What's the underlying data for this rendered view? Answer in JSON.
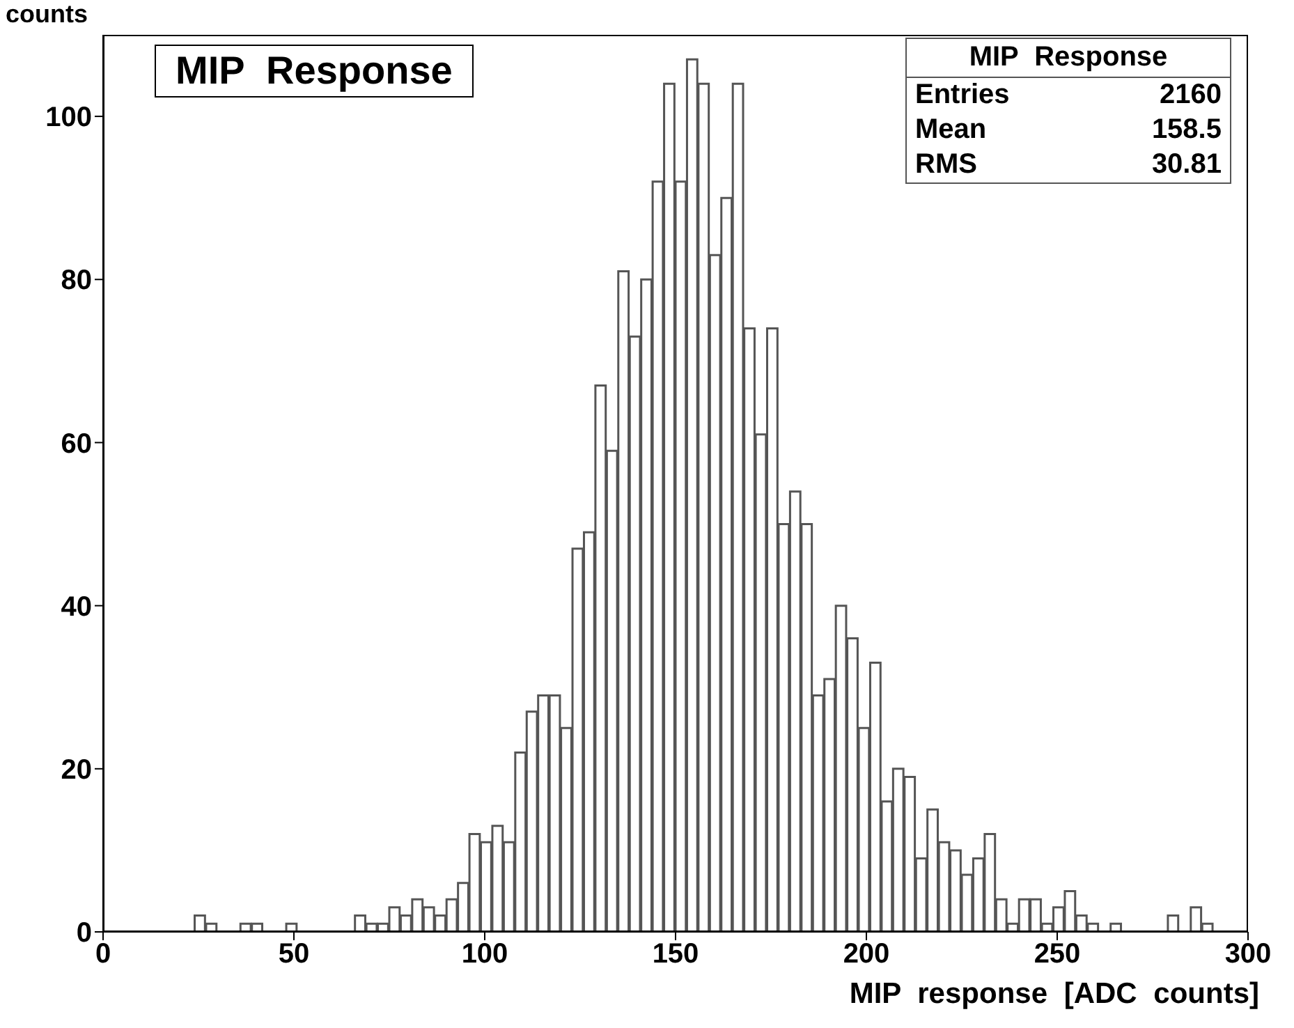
{
  "chart_data": {
    "type": "histogram",
    "title": "MIP Response",
    "xlabel": "MIP response [ADC counts]",
    "ylabel": "counts",
    "annotations": [
      "MIP Response",
      "Entries 2160",
      "Mean 158.5",
      "RMS 30.81"
    ],
    "bins": [
      0,
      3,
      6,
      9,
      12,
      15,
      18,
      21,
      24,
      27,
      30,
      33,
      36,
      39,
      42,
      45,
      48,
      51,
      54,
      57,
      60,
      63,
      66,
      69,
      72,
      75,
      78,
      81,
      84,
      87,
      90,
      93,
      96,
      99,
      102,
      105,
      108,
      111,
      114,
      117,
      120,
      123,
      126,
      129,
      132,
      135,
      138,
      141,
      144,
      147,
      150,
      153,
      156,
      159,
      162,
      165,
      168,
      171,
      174,
      177,
      180,
      183,
      186,
      189,
      192,
      195,
      198,
      201,
      204,
      207,
      210,
      213,
      216,
      219,
      222,
      225,
      228,
      231,
      234,
      237,
      240,
      243,
      246,
      249,
      252,
      255,
      258,
      261,
      264,
      267,
      270,
      273,
      276,
      279,
      282,
      285,
      288,
      291,
      294,
      297,
      300
    ],
    "values": [
      0,
      0,
      0,
      0,
      0,
      0,
      0,
      0,
      2,
      1,
      0,
      0,
      1,
      1,
      0,
      0,
      1,
      0,
      0,
      0,
      0,
      0,
      2,
      1,
      1,
      3,
      2,
      4,
      3,
      2,
      4,
      6,
      12,
      11,
      13,
      11,
      22,
      27,
      29,
      29,
      25,
      47,
      49,
      67,
      59,
      81,
      73,
      80,
      92,
      104,
      92,
      107,
      104,
      83,
      90,
      104,
      74,
      61,
      74,
      50,
      54,
      50,
      29,
      31,
      40,
      36,
      25,
      33,
      16,
      20,
      19,
      9,
      15,
      11,
      10,
      7,
      9,
      12,
      4,
      1,
      4,
      4,
      1,
      3,
      5,
      2,
      1,
      0,
      1,
      0,
      0,
      0,
      0,
      2,
      0,
      3,
      1,
      0,
      0,
      0
    ],
    "color": "#555555",
    "xlim": [
      0,
      300
    ],
    "xticks": [
      0,
      50,
      100,
      150,
      200,
      250,
      300
    ],
    "ylim": [
      0,
      110
    ],
    "yticks": [
      0,
      20,
      40,
      60,
      80,
      100
    ],
    "grid": false
  }
}
